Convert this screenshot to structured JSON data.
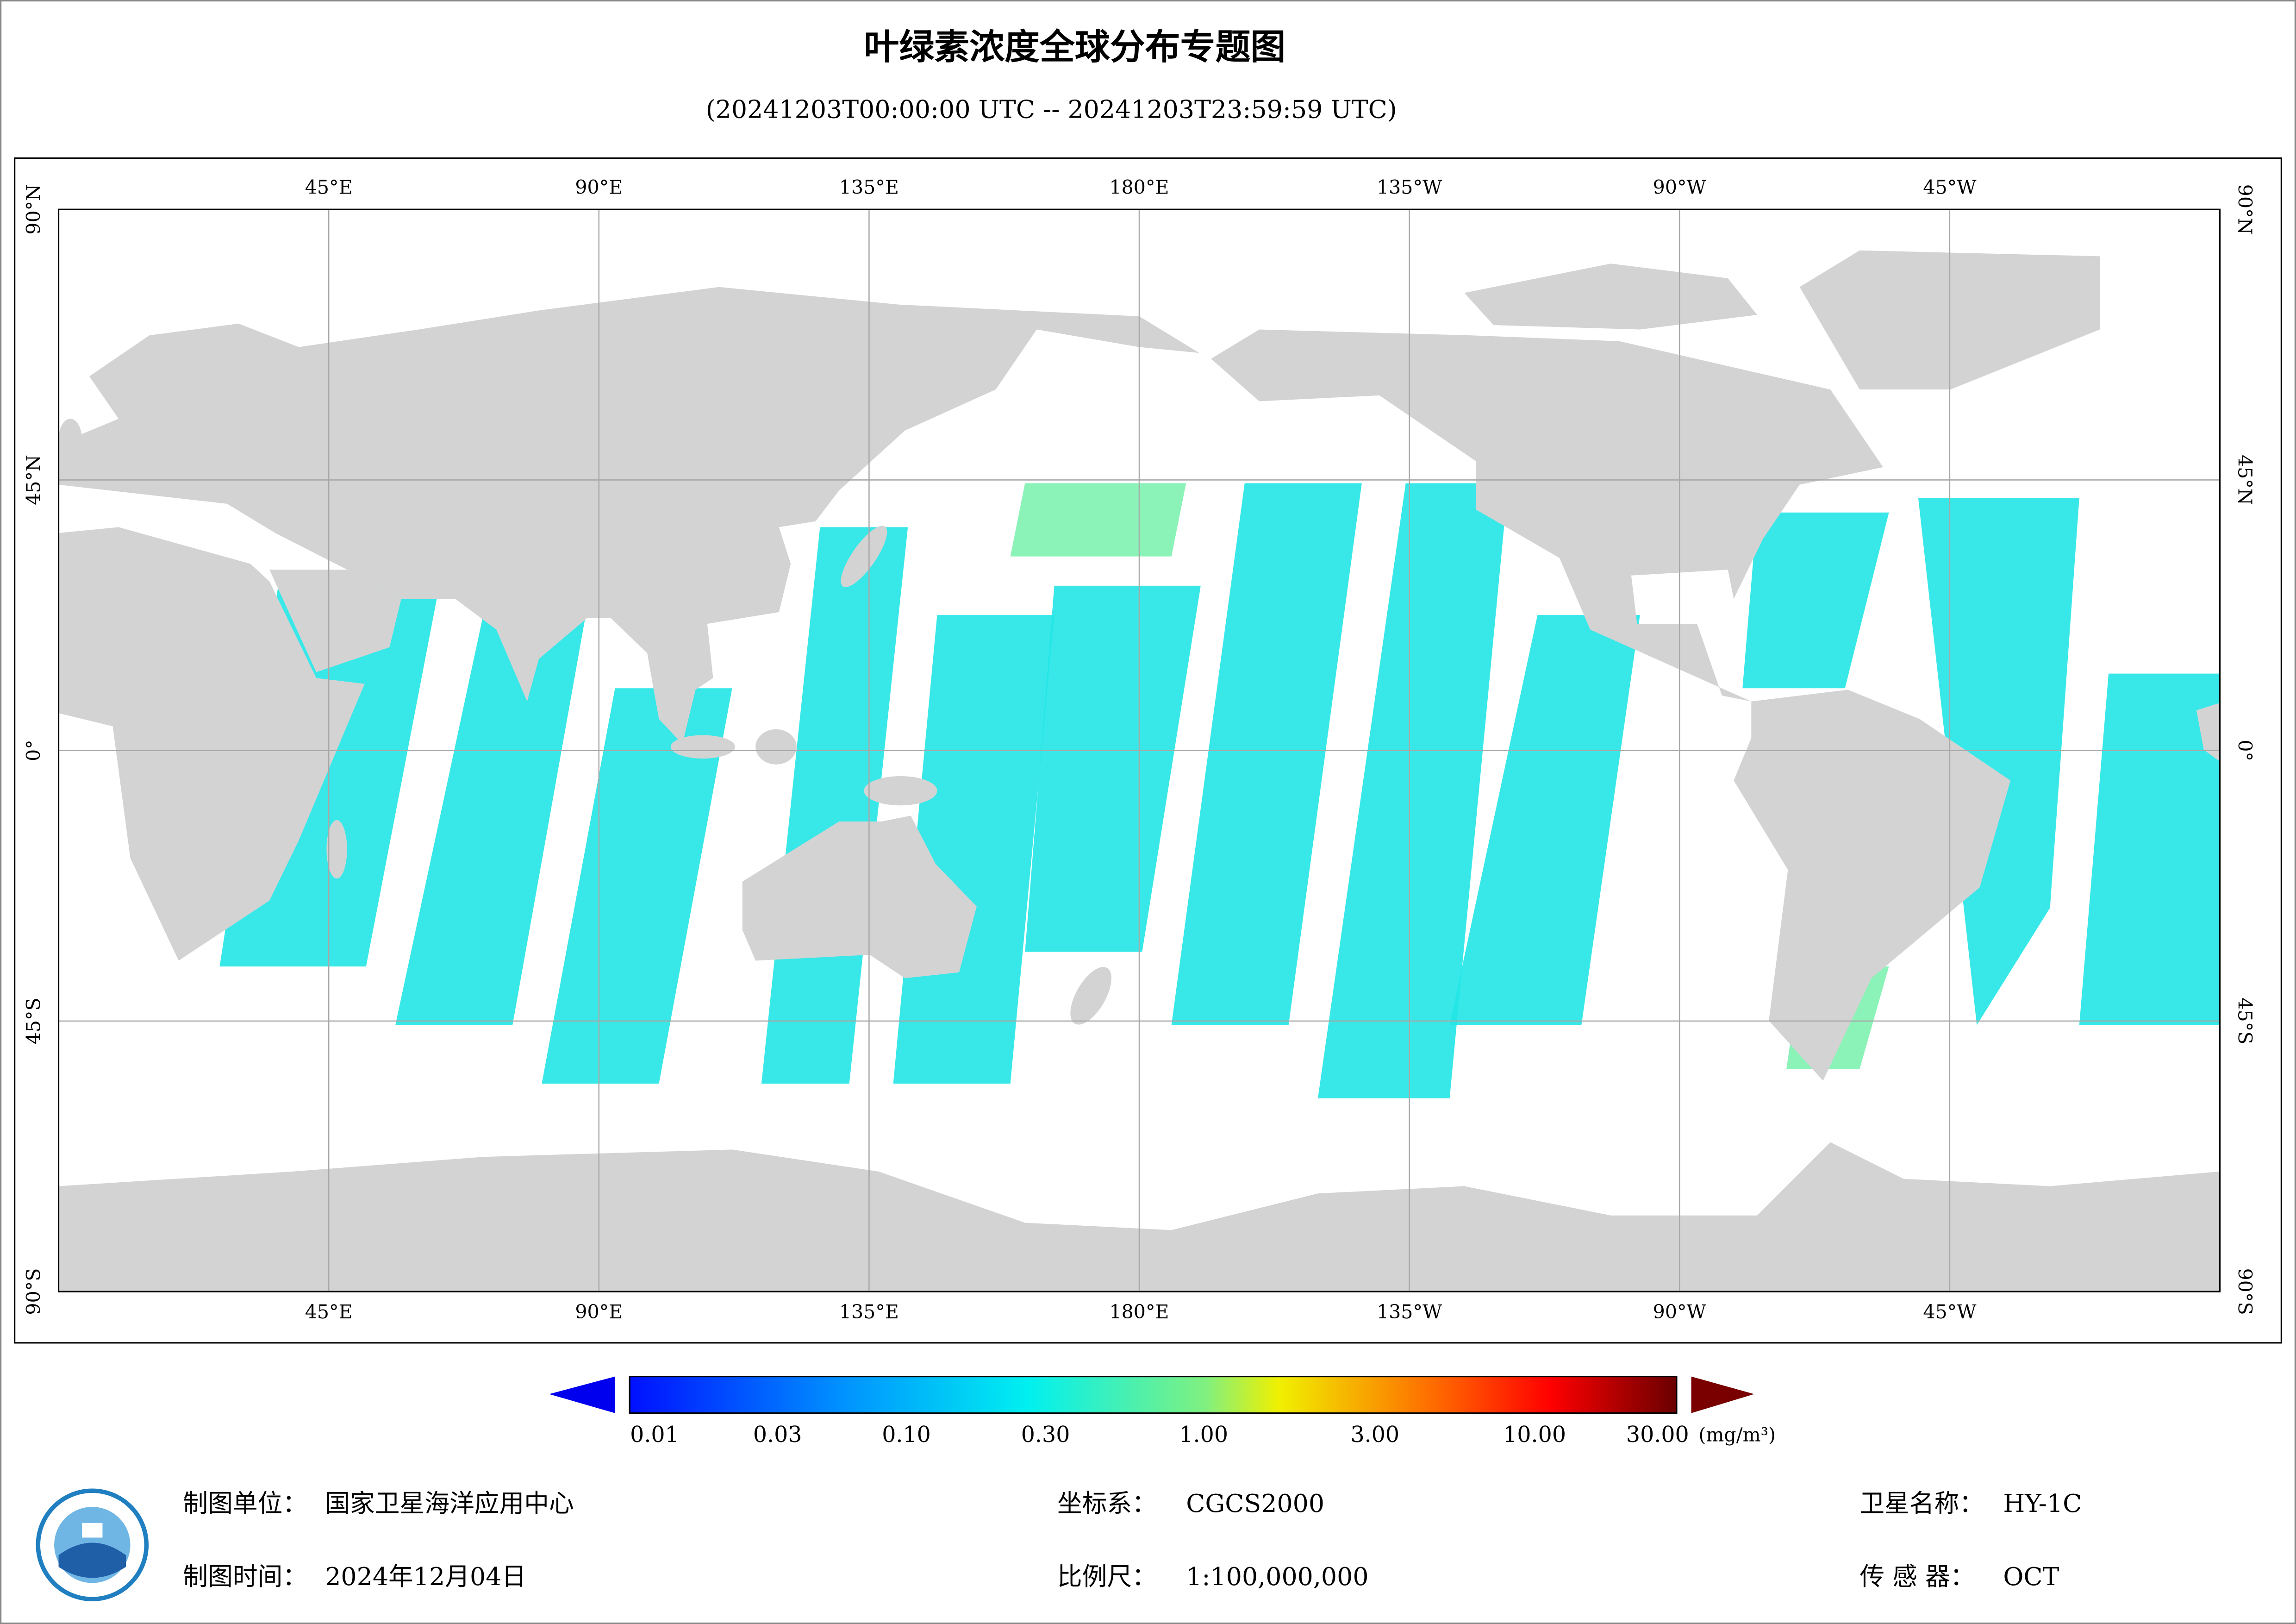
{
  "header": {
    "title": "叶绿素浓度全球分布专题图",
    "subtitle": "(20241203T00:00:00 UTC -- 20241203T23:59:59 UTC)"
  },
  "map": {
    "longitude_labels": [
      "45°E",
      "90°E",
      "135°E",
      "180°E",
      "135°W",
      "90°W",
      "45°W"
    ],
    "latitude_labels": [
      "90°N",
      "45°N",
      "0°",
      "45°S",
      "90°S"
    ]
  },
  "legend": {
    "labels": [
      "0.01",
      "0.03",
      "0.10",
      "0.30",
      "1.00",
      "3.00",
      "10.00",
      "30.00"
    ],
    "unit": "(mg/m³)"
  },
  "footer": {
    "unit_label": "制图单位：",
    "unit": "国家卫星海洋应用中心",
    "date_label": "制图时间：",
    "date": "2024年12月04日",
    "crs_label": "坐标系：",
    "crs": "CGCS2000",
    "scale_label": "比例尺：",
    "scale": "1:100,000,000",
    "satellite_label": "卫星名称：",
    "satellite": "HY-1C",
    "sensor_label": "传 感 器：",
    "sensor": "OCT"
  }
}
